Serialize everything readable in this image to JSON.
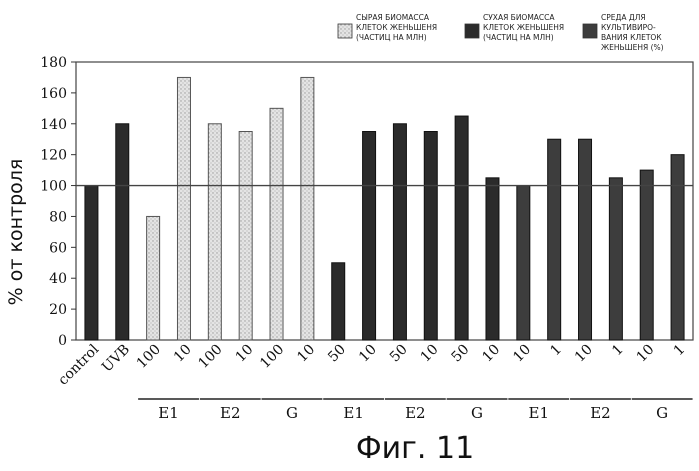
{
  "chart_data": {
    "type": "bar",
    "title": "",
    "xlabel": "",
    "ylabel": "% от контроля",
    "ylim": [
      0,
      180
    ],
    "yticks": [
      0,
      20,
      40,
      60,
      80,
      100,
      120,
      140,
      160,
      180
    ],
    "reference_line": 100,
    "categories": [
      "control",
      "UVB",
      "100",
      "10",
      "100",
      "10",
      "100",
      "10",
      "50",
      "10",
      "50",
      "10",
      "50",
      "10",
      "10",
      "1",
      "10",
      "1",
      "10",
      "1"
    ],
    "values": [
      100,
      140,
      80,
      170,
      140,
      135,
      150,
      170,
      50,
      135,
      140,
      135,
      145,
      105,
      100,
      130,
      130,
      105,
      110,
      120
    ],
    "bar_series": [
      0,
      0,
      1,
      1,
      1,
      1,
      1,
      1,
      2,
      2,
      2,
      2,
      2,
      2,
      3,
      3,
      3,
      3,
      3,
      3
    ],
    "series": [
      {
        "name": "СЫРАЯ БИОМАССА КЛЕТОК ЖЕНЬШЕНЯ (ЧАСТИЦ НА МЛН)",
        "color": "#d6d6d6",
        "lines": [
          "СЫРАЯ БИОМАССА",
          "КЛЕТОК ЖЕНЬШЕНЯ",
          "(ЧАСТИЦ НА МЛН)"
        ]
      },
      {
        "name": "СУХАЯ БИОМАССА КЛЕТОК ЖЕНЬШЕНЯ (ЧАСТИЦ НА МЛН)",
        "color": "#2b2b2b",
        "lines": [
          "СУХАЯ БИОМАССА",
          "КЛЕТОК ЖЕНЬШЕНЯ",
          "(ЧАСТИЦ НА МЛН)"
        ]
      },
      {
        "name": "СРЕДА ДЛЯ КУЛЬТИВИРОВАНИЯ КЛЕТОК ЖЕНЬШЕНЯ (%)",
        "color": "#3d3d3d",
        "lines": [
          "СРЕДА ДЛЯ",
          "КУЛЬТИВИРО-",
          "ВАНИЯ КЛЕТОК",
          "ЖЕНЬШЕНЯ (%)"
        ]
      }
    ],
    "groups": [
      {
        "label": "E1",
        "bars": [
          2,
          3
        ]
      },
      {
        "label": "E2",
        "bars": [
          4,
          5
        ]
      },
      {
        "label": "G",
        "bars": [
          6,
          7
        ]
      },
      {
        "label": "E1",
        "bars": [
          8,
          9
        ]
      },
      {
        "label": "E2",
        "bars": [
          10,
          11
        ]
      },
      {
        "label": "G",
        "bars": [
          12,
          13
        ]
      },
      {
        "label": "E1",
        "bars": [
          14,
          15
        ]
      },
      {
        "label": "E2",
        "bars": [
          16,
          17
        ]
      },
      {
        "label": "G",
        "bars": [
          18,
          19
        ]
      }
    ],
    "legend_position": "top-right",
    "grid": false
  },
  "caption": "Фиг. 11",
  "colors": {
    "baseline_bar": "#2b2b2b",
    "frame": "#444444",
    "reference_line": "#444444"
  }
}
